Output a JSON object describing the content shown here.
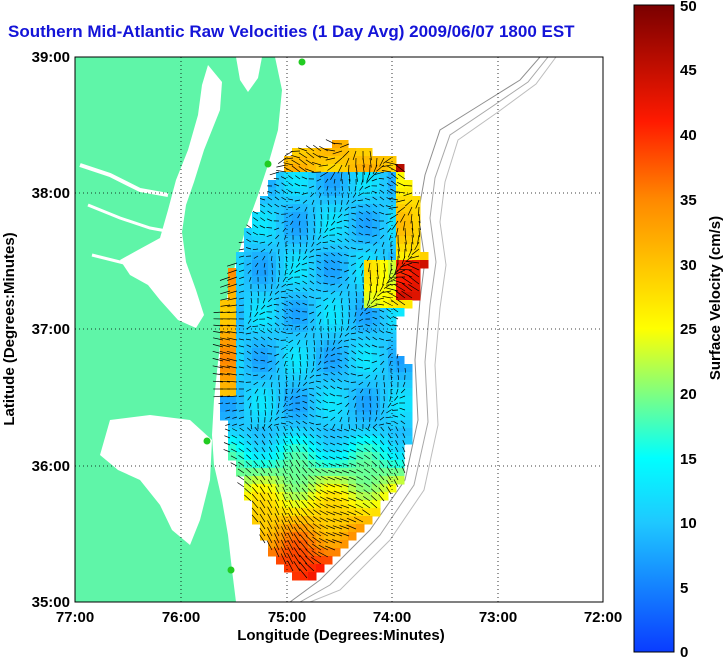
{
  "title": "Southern Mid-Atlantic Raw Velocities (1 Day Avg) 2009/06/07 1800 EST",
  "map": {
    "xlabel": "Longitude (Degrees:Minutes)",
    "ylabel": "Latitude (Degrees:Minutes)",
    "x_ticks": [
      "77:00",
      "76:00",
      "75:00",
      "74:00",
      "73:00",
      "72:00"
    ],
    "y_ticks": [
      "39:00",
      "38:00",
      "37:00",
      "36:00",
      "35:00"
    ],
    "lon_range": [
      -77,
      -72
    ],
    "lat_range": [
      35,
      39
    ],
    "grid": true
  },
  "colorbar": {
    "label": "Surface Velocity (cm/s)",
    "ticks": [
      "50",
      "45",
      "40",
      "35",
      "30",
      "25",
      "20",
      "15",
      "10",
      "5",
      "0"
    ],
    "range": [
      0,
      50
    ],
    "colors": [
      "#0000ff",
      "#00ffff",
      "#ffff00",
      "#ff0000",
      "#800000"
    ]
  },
  "colors": {
    "land": "#5ff5a8",
    "water": "#ffffff",
    "title": "#1414d8",
    "station": "#22cc22"
  }
}
